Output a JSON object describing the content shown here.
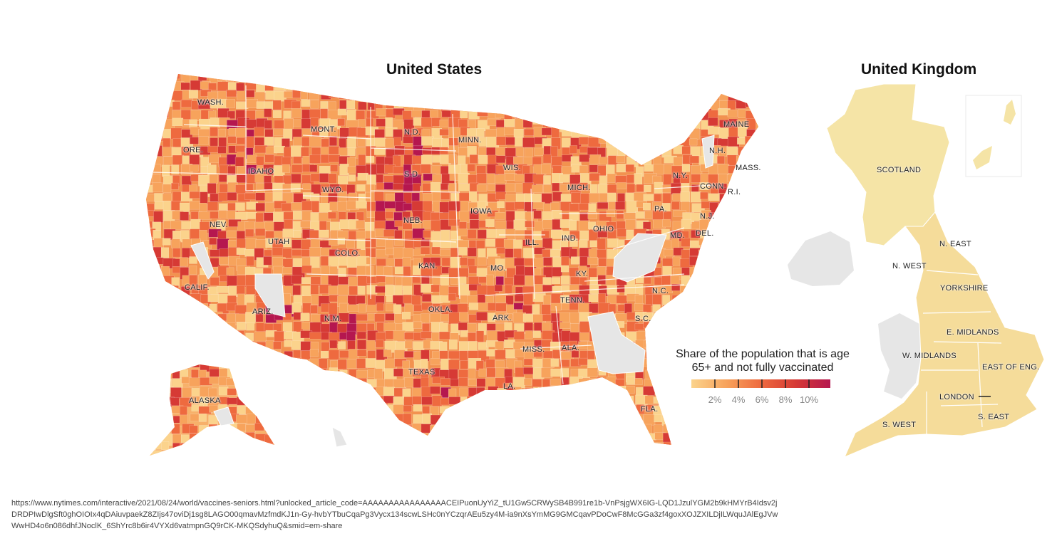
{
  "us": {
    "title": "United States",
    "labels": [
      {
        "id": "wash",
        "text": "WASH."
      },
      {
        "id": "ore",
        "text": "ORE."
      },
      {
        "id": "idaho",
        "text": "IDAHO"
      },
      {
        "id": "mont",
        "text": "MONT."
      },
      {
        "id": "nd",
        "text": "N.D."
      },
      {
        "id": "minn",
        "text": "MINN."
      },
      {
        "id": "sd",
        "text": "S.D."
      },
      {
        "id": "wyo",
        "text": "WYO."
      },
      {
        "id": "wis",
        "text": "WIS."
      },
      {
        "id": "mich",
        "text": "MICH."
      },
      {
        "id": "iowa",
        "text": "IOWA"
      },
      {
        "id": "neb",
        "text": "NEB."
      },
      {
        "id": "nev",
        "text": "NEV."
      },
      {
        "id": "utah",
        "text": "UTAH"
      },
      {
        "id": "colo",
        "text": "COLO."
      },
      {
        "id": "ill",
        "text": "ILL."
      },
      {
        "id": "ind",
        "text": "IND."
      },
      {
        "id": "ohio",
        "text": "OHIO"
      },
      {
        "id": "pa",
        "text": "PA."
      },
      {
        "id": "ny",
        "text": "N.Y."
      },
      {
        "id": "maine",
        "text": "MAINE"
      },
      {
        "id": "nh",
        "text": "N.H."
      },
      {
        "id": "mass",
        "text": "MASS."
      },
      {
        "id": "conn",
        "text": "CONN."
      },
      {
        "id": "ri",
        "text": "R.I."
      },
      {
        "id": "nj",
        "text": "N.J."
      },
      {
        "id": "md",
        "text": "MD."
      },
      {
        "id": "del",
        "text": "DEL."
      },
      {
        "id": "calif",
        "text": "CALIF."
      },
      {
        "id": "kan",
        "text": "KAN."
      },
      {
        "id": "mo",
        "text": "MO."
      },
      {
        "id": "ky",
        "text": "KY."
      },
      {
        "id": "arizona",
        "text": "ARIZ."
      },
      {
        "id": "nm",
        "text": "N.M."
      },
      {
        "id": "okla",
        "text": "OKLA."
      },
      {
        "id": "ark",
        "text": "ARK."
      },
      {
        "id": "tenn",
        "text": "TENN."
      },
      {
        "id": "nc",
        "text": "N.C."
      },
      {
        "id": "sc",
        "text": "S.C."
      },
      {
        "id": "miss",
        "text": "MISS."
      },
      {
        "id": "ala",
        "text": "ALA."
      },
      {
        "id": "texas",
        "text": "TEXAS"
      },
      {
        "id": "la",
        "text": "LA."
      },
      {
        "id": "fla",
        "text": "FLA."
      },
      {
        "id": "alaska",
        "text": "ALASKA"
      }
    ]
  },
  "uk": {
    "title": "United Kingdom",
    "labels": [
      {
        "id": "scotland",
        "text": "SCOTLAND"
      },
      {
        "id": "n-east",
        "text": "N. EAST"
      },
      {
        "id": "n-west",
        "text": "N. WEST"
      },
      {
        "id": "yorkshire",
        "text": "YORKSHIRE"
      },
      {
        "id": "e-midlands",
        "text": "E. MIDLANDS"
      },
      {
        "id": "w-midlands",
        "text": "W. MIDLANDS"
      },
      {
        "id": "east-of-eng",
        "text": "EAST OF ENG."
      },
      {
        "id": "london",
        "text": "LONDON"
      },
      {
        "id": "s-east",
        "text": "S. EAST"
      },
      {
        "id": "s-west",
        "text": "S. WEST"
      }
    ]
  },
  "legend": {
    "title_line1": "Share of the population that is age",
    "title_line2": "65+ and not fully vaccinated",
    "ticks": [
      "2%",
      "4%",
      "6%",
      "8%",
      "10%"
    ],
    "colors": [
      "#fbd38c",
      "#f7a35c",
      "#ee6a3f",
      "#d63a35",
      "#b5174f"
    ]
  },
  "colors": {
    "no_data": "#e6e6e6",
    "uk_fill": "#f5dc9a",
    "scotland_fill": "#f5e4a6"
  },
  "source_url": "https://www.nytimes.com/interactive/2021/08/24/world/vaccines-seniors.html?unlocked_article_code=AAAAAAAAAAAAAAAACEIPuonUyYiZ_tU1Gw5CRWySB4B991re1b-VnPsjgWX6IG-LQD1JzulYGM2b9kHMYrB4Idsv2jDRDPIwDlgSft0ghOIOIx4qDAiuvpaekZ8ZIjs47oviDj1sg8LAGO00qmavMzfmdKJ1n-Gy-hvbYTbuCqaPg3Vycx134scwLSHc0nYCzqrAEu5zy4M-ia9nXsYmMG9GMCqavPDoCwF8McGGa3zf4goxXOJZXILDjILWquJAlEgJVwWwHD4o6n086dhfJNoclK_6ShYrc8b6ir4VYXd6vatmpnGQ9rCK-MKQSdyhuQ&smid=em-share"
}
